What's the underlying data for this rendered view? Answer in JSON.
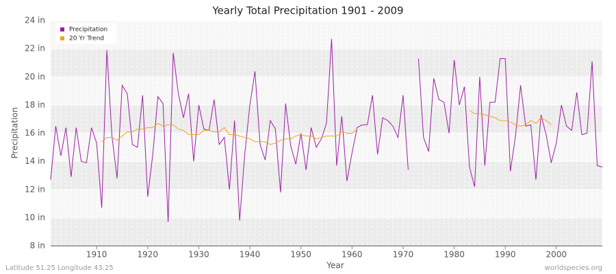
{
  "chart_data": {
    "type": "line",
    "title": "Yearly Total Precipitation 1901 - 2009",
    "x_label": "Year",
    "y_label": "Precipitation",
    "footer_left": "Latitude 51.25 Longitude 43.25",
    "footer_right": "worldspecies.org",
    "legend": "top-left",
    "x": [
      1901,
      1902,
      1903,
      1904,
      1905,
      1906,
      1907,
      1908,
      1909,
      1910,
      1911,
      1912,
      1913,
      1914,
      1915,
      1916,
      1917,
      1918,
      1919,
      1920,
      1921,
      1922,
      1923,
      1924,
      1925,
      1926,
      1927,
      1928,
      1929,
      1930,
      1931,
      1932,
      1933,
      1934,
      1935,
      1936,
      1937,
      1938,
      1939,
      1940,
      1941,
      1942,
      1943,
      1944,
      1945,
      1946,
      1947,
      1948,
      1949,
      1950,
      1951,
      1952,
      1953,
      1954,
      1955,
      1956,
      1957,
      1958,
      1959,
      1960,
      1961,
      1962,
      1963,
      1964,
      1965,
      1966,
      1967,
      1968,
      1969,
      1970,
      1971,
      1972,
      1973,
      1974,
      1975,
      1976,
      1977,
      1978,
      1979,
      1980,
      1981,
      1982,
      1983,
      1984,
      1985,
      1986,
      1987,
      1988,
      1989,
      1990,
      1991,
      1992,
      1993,
      1994,
      1995,
      1996,
      1997,
      1998,
      1999,
      2000,
      2001,
      2002,
      2003,
      2004,
      2005,
      2006,
      2007,
      2008,
      2009
    ],
    "series": [
      {
        "name": "Precipitation",
        "color": "#9b1fa0",
        "values": [
          12.7,
          16.5,
          14.4,
          16.4,
          12.9,
          16.4,
          14.0,
          13.9,
          16.4,
          15.3,
          10.7,
          21.9,
          15.8,
          12.8,
          19.4,
          18.8,
          15.2,
          15.0,
          18.7,
          11.5,
          14.5,
          18.6,
          18.1,
          9.7,
          21.7,
          18.8,
          17.1,
          18.8,
          14.0,
          18.0,
          16.3,
          16.2,
          18.4,
          15.2,
          15.7,
          12.0,
          16.9,
          9.8,
          14.5,
          18.0,
          20.4,
          15.2,
          14.1,
          16.9,
          16.3,
          11.8,
          18.1,
          15.1,
          13.8,
          16.0,
          13.4,
          16.4,
          15.0,
          15.6,
          16.7,
          22.7,
          13.7,
          17.2,
          12.6,
          14.6,
          16.4,
          16.6,
          16.6,
          18.7,
          14.5,
          17.1,
          16.9,
          16.5,
          15.7,
          18.7,
          13.4,
          null,
          21.3,
          15.7,
          14.7,
          19.9,
          18.4,
          18.2,
          16.0,
          21.2,
          18.0,
          19.3,
          13.6,
          12.2,
          20.0,
          13.7,
          18.2,
          18.2,
          21.3,
          21.3,
          13.3,
          15.8,
          19.4,
          16.5,
          16.6,
          12.7,
          17.3,
          15.9,
          13.9,
          15.3,
          18.0,
          16.5,
          16.2,
          18.9,
          15.9,
          16.0,
          21.1,
          13.7,
          13.6
        ]
      },
      {
        "name": "20 Yr Trend",
        "color": "#f7a21b",
        "values": [
          null,
          null,
          null,
          null,
          null,
          null,
          null,
          null,
          null,
          null,
          15.4,
          15.7,
          15.7,
          15.5,
          15.8,
          16.1,
          16.1,
          16.3,
          16.3,
          16.4,
          16.4,
          16.7,
          16.5,
          16.6,
          16.6,
          16.3,
          16.2,
          15.9,
          15.9,
          15.9,
          16.2,
          16.2,
          16.1,
          16.1,
          16.4,
          15.9,
          15.9,
          15.8,
          15.7,
          15.6,
          15.4,
          15.4,
          15.4,
          15.2,
          15.3,
          15.5,
          15.6,
          15.6,
          15.8,
          15.9,
          15.8,
          15.8,
          15.6,
          15.7,
          15.8,
          15.8,
          15.8,
          16.1,
          16.0,
          16.0,
          16.3,
          null,
          null,
          null,
          null,
          null,
          null,
          null,
          null,
          null,
          null,
          null,
          null,
          null,
          null,
          null,
          null,
          null,
          null,
          null,
          null,
          null,
          17.6,
          17.4,
          17.4,
          17.3,
          17.2,
          17.1,
          16.9,
          16.9,
          16.8,
          16.6,
          16.5,
          16.6,
          16.9,
          16.7,
          17.1,
          16.9,
          16.6,
          null,
          null,
          null,
          null,
          null,
          null,
          null,
          null,
          null,
          null
        ]
      }
    ],
    "xlim": [
      1901,
      2009
    ],
    "xticks": [
      1910,
      1920,
      1930,
      1940,
      1950,
      1960,
      1970,
      1980,
      1990,
      2000
    ],
    "ylim": [
      8,
      24
    ],
    "yticks": [
      {
        "value": 8,
        "label": "8 in"
      },
      {
        "value": 10,
        "label": "10 in"
      },
      {
        "value": 12,
        "label": "12 in"
      },
      {
        "value": 14,
        "label": "14 in"
      },
      {
        "value": 16,
        "label": "16 in"
      },
      {
        "value": 18,
        "label": "18 in"
      },
      {
        "value": 20,
        "label": "20 in"
      },
      {
        "value": 22,
        "label": "22 in"
      },
      {
        "value": 24,
        "label": "24 in"
      }
    ],
    "grid": true
  }
}
